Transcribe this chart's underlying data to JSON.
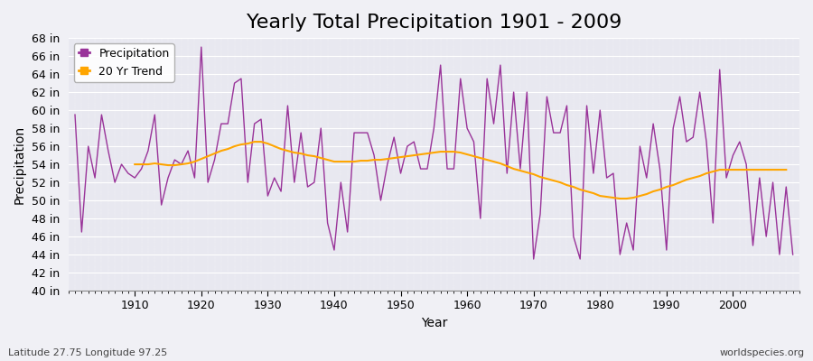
{
  "title": "Yearly Total Precipitation 1901 - 2009",
  "xlabel": "Year",
  "ylabel": "Precipitation",
  "subtitle_left": "Latitude 27.75 Longitude 97.25",
  "subtitle_right": "worldspecies.org",
  "years": [
    1901,
    1902,
    1903,
    1904,
    1905,
    1906,
    1907,
    1908,
    1909,
    1910,
    1911,
    1912,
    1913,
    1914,
    1915,
    1916,
    1917,
    1918,
    1919,
    1920,
    1921,
    1922,
    1923,
    1924,
    1925,
    1926,
    1927,
    1928,
    1929,
    1930,
    1931,
    1932,
    1933,
    1934,
    1935,
    1936,
    1937,
    1938,
    1939,
    1940,
    1941,
    1942,
    1943,
    1944,
    1945,
    1946,
    1947,
    1948,
    1949,
    1950,
    1951,
    1952,
    1953,
    1954,
    1955,
    1956,
    1957,
    1958,
    1959,
    1960,
    1961,
    1962,
    1963,
    1964,
    1965,
    1966,
    1967,
    1968,
    1969,
    1970,
    1971,
    1972,
    1973,
    1974,
    1975,
    1976,
    1977,
    1978,
    1979,
    1980,
    1981,
    1982,
    1983,
    1984,
    1985,
    1986,
    1987,
    1988,
    1989,
    1990,
    1991,
    1992,
    1993,
    1994,
    1995,
    1996,
    1997,
    1998,
    1999,
    2000,
    2001,
    2002,
    2003,
    2004,
    2005,
    2006,
    2007,
    2008,
    2009
  ],
  "precip": [
    59.5,
    46.5,
    56.0,
    52.5,
    59.5,
    55.5,
    52.0,
    54.0,
    53.0,
    52.5,
    53.5,
    55.5,
    59.5,
    49.5,
    52.5,
    54.5,
    54.0,
    55.5,
    52.5,
    67.0,
    52.0,
    54.5,
    58.5,
    58.5,
    63.0,
    63.5,
    52.0,
    58.5,
    59.0,
    50.5,
    52.5,
    51.0,
    60.5,
    52.0,
    57.5,
    51.5,
    52.0,
    58.0,
    47.5,
    44.5,
    52.0,
    46.5,
    57.5,
    57.5,
    57.5,
    55.0,
    50.0,
    54.0,
    57.0,
    53.0,
    56.0,
    56.5,
    53.5,
    53.5,
    58.0,
    65.0,
    53.5,
    53.5,
    63.5,
    58.0,
    56.5,
    48.0,
    63.5,
    58.5,
    65.0,
    53.0,
    62.0,
    53.5,
    62.0,
    43.5,
    48.5,
    61.5,
    57.5,
    57.5,
    60.5,
    46.0,
    43.5,
    60.5,
    53.0,
    60.0,
    52.5,
    53.0,
    44.0,
    47.5,
    44.5,
    56.0,
    52.5,
    58.5,
    53.5,
    44.5,
    58.0,
    61.5,
    56.5,
    57.0,
    62.0,
    56.5,
    47.5,
    64.5,
    52.5,
    55.0,
    56.5,
    54.0,
    45.0,
    52.5,
    46.0,
    52.0,
    44.0,
    51.5,
    44.0
  ],
  "trend": [
    null,
    null,
    null,
    null,
    null,
    null,
    null,
    null,
    null,
    54.0,
    54.0,
    54.0,
    54.1,
    54.0,
    53.9,
    53.9,
    54.0,
    54.1,
    54.3,
    54.6,
    54.9,
    55.2,
    55.5,
    55.7,
    56.0,
    56.2,
    56.3,
    56.5,
    56.5,
    56.3,
    56.0,
    55.7,
    55.5,
    55.3,
    55.2,
    55.0,
    54.9,
    54.7,
    54.5,
    54.3,
    54.3,
    54.3,
    54.3,
    54.4,
    54.4,
    54.5,
    54.5,
    54.6,
    54.7,
    54.8,
    54.9,
    55.0,
    55.1,
    55.2,
    55.3,
    55.4,
    55.4,
    55.4,
    55.3,
    55.1,
    54.9,
    54.7,
    54.5,
    54.3,
    54.1,
    53.8,
    53.5,
    53.3,
    53.1,
    52.9,
    52.6,
    52.4,
    52.2,
    52.0,
    51.7,
    51.5,
    51.2,
    51.0,
    50.8,
    50.5,
    50.4,
    50.3,
    50.2,
    50.2,
    50.3,
    50.5,
    50.7,
    51.0,
    51.2,
    51.5,
    51.7,
    52.0,
    52.3,
    52.5,
    52.7,
    53.0,
    53.2,
    53.4,
    53.4,
    53.4,
    53.4,
    53.4,
    53.4,
    53.4,
    53.4,
    53.4,
    53.4,
    53.4
  ],
  "precip_color": "#993399",
  "trend_color": "#FFA500",
  "bg_color": "#f0f0f5",
  "plot_bg_color": "#e8e8f0",
  "grid_color": "#ffffff",
  "ylim": [
    40,
    68
  ],
  "yticks": [
    40,
    42,
    44,
    46,
    48,
    50,
    52,
    54,
    56,
    58,
    60,
    62,
    64,
    66,
    68
  ],
  "title_fontsize": 16,
  "axis_label_fontsize": 10,
  "tick_fontsize": 9,
  "legend_fontsize": 9
}
